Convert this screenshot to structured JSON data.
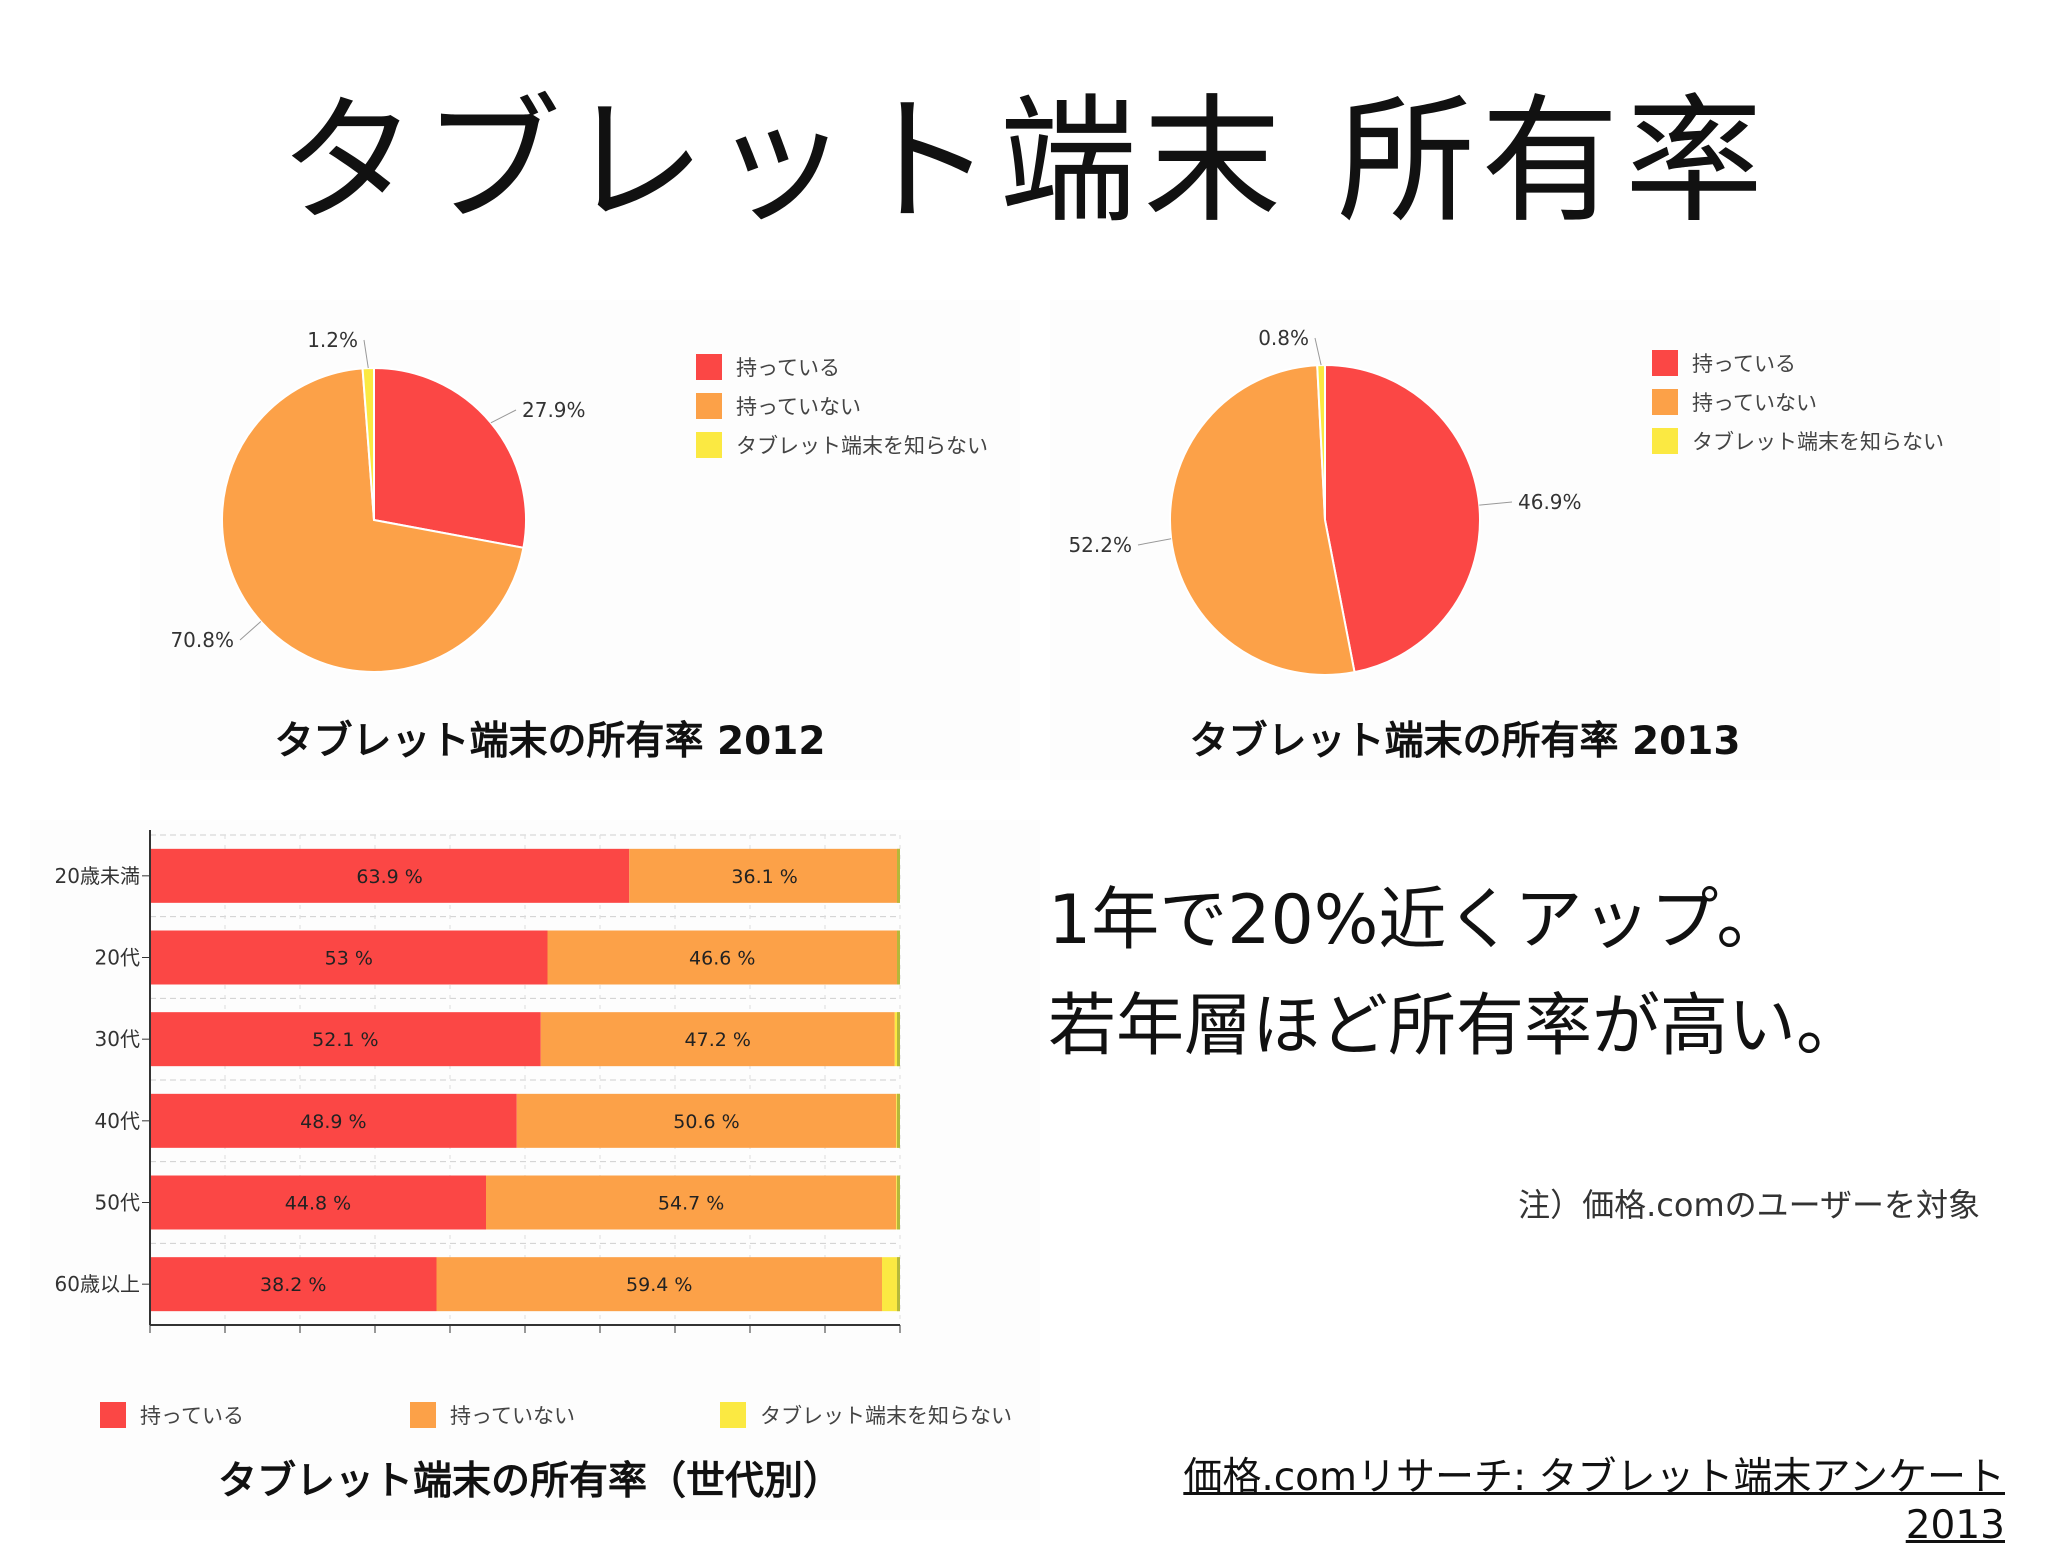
{
  "title": "タブレット端末 所有率",
  "colors": {
    "owned": "#fb4745",
    "not_owned": "#fca148",
    "unknown": "#fbe942"
  },
  "chart_data": [
    {
      "type": "pie",
      "title": "タブレット端末の所有率 2012",
      "labels": [
        "持っている",
        "持っていない",
        "タブレット端末を知らない"
      ],
      "values": [
        27.9,
        70.8,
        1.2
      ],
      "value_labels": [
        "27.9%",
        "70.8%",
        "1.2%"
      ],
      "legend": "right"
    },
    {
      "type": "pie",
      "title": "タブレット端末の所有率 2013",
      "labels": [
        "持っている",
        "持っていない",
        "タブレット端末を知らない"
      ],
      "values": [
        46.9,
        52.2,
        0.8
      ],
      "value_labels": [
        "46.9%",
        "52.2%",
        "0.8%"
      ],
      "legend": "right"
    },
    {
      "type": "bar",
      "orientation": "horizontal",
      "stacked": true,
      "title": "タブレット端末の所有率（世代別）",
      "categories": [
        "20歳未満",
        "20代",
        "30代",
        "40代",
        "50代",
        "60歳以上"
      ],
      "series": [
        {
          "name": "持っている",
          "values": [
            63.9,
            53,
            52.1,
            48.9,
            44.8,
            38.2
          ],
          "value_labels": [
            "63.9 %",
            "53 %",
            "52.1 %",
            "48.9 %",
            "44.8 %",
            "38.2 %"
          ]
        },
        {
          "name": "持っていない",
          "values": [
            36.1,
            46.6,
            47.2,
            50.6,
            54.7,
            59.4
          ],
          "value_labels": [
            "36.1 %",
            "46.6 %",
            "47.2 %",
            "50.6 %",
            "54.7 %",
            "59.4 %"
          ]
        },
        {
          "name": "タブレット端末を知らない",
          "values": [
            0,
            0.4,
            0.7,
            0.5,
            0.5,
            2.4
          ]
        }
      ],
      "xlim": [
        0,
        100
      ],
      "xticks": [
        "0%",
        "10%",
        "20%",
        "30%",
        "40%",
        "50%",
        "60%",
        "70%",
        "80%",
        "90%",
        "100%"
      ],
      "grid": true,
      "legend": "bottom"
    }
  ],
  "headline": [
    "1年で20%近くアップ。",
    "若年層ほど所有率が高い。"
  ],
  "note": "注）価格.comのユーザーを対象",
  "source": "価格.comリサーチ: タブレット端末アンケート 2013"
}
